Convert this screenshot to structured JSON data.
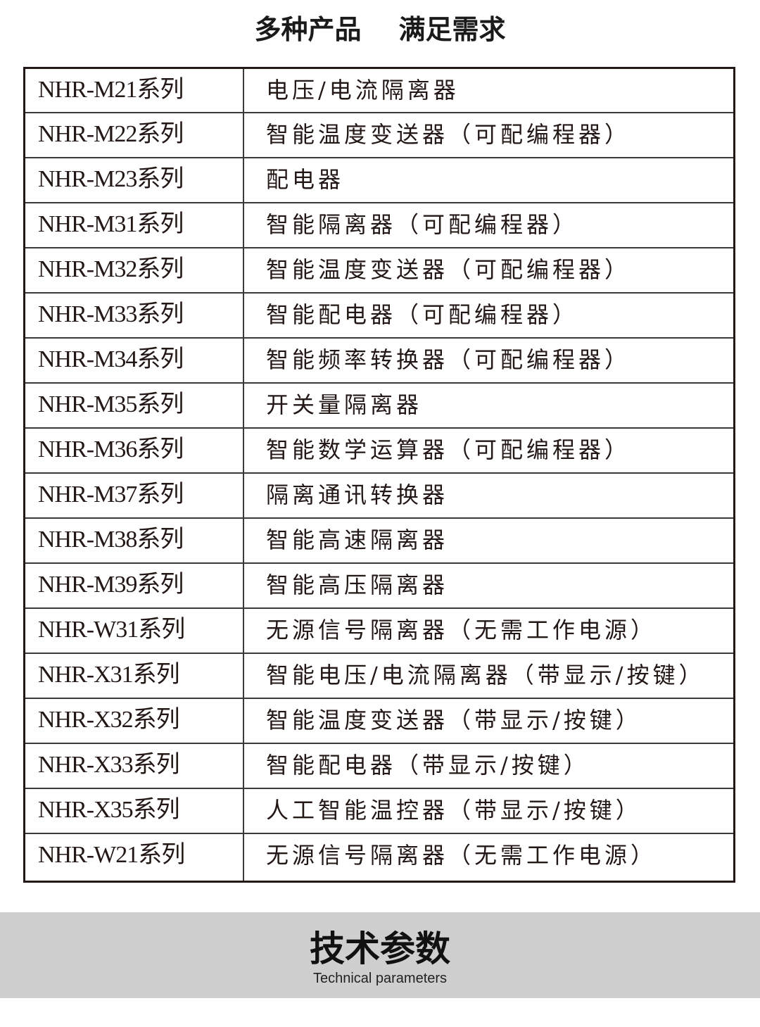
{
  "header": {
    "title": "多种产品    满足需求"
  },
  "products": [
    {
      "series": "NHR-M21系列",
      "description": "电压/电流隔离器"
    },
    {
      "series": "NHR-M22系列",
      "description": "智能温度变送器（可配编程器）"
    },
    {
      "series": "NHR-M23系列",
      "description": "配电器"
    },
    {
      "series": "NHR-M31系列",
      "description": "智能隔离器（可配编程器）"
    },
    {
      "series": "NHR-M32系列",
      "description": "智能温度变送器（可配编程器）"
    },
    {
      "series": "NHR-M33系列",
      "description": "智能配电器（可配编程器）"
    },
    {
      "series": "NHR-M34系列",
      "description": "智能频率转换器（可配编程器）"
    },
    {
      "series": "NHR-M35系列",
      "description": "开关量隔离器"
    },
    {
      "series": "NHR-M36系列",
      "description": "智能数学运算器（可配编程器）"
    },
    {
      "series": "NHR-M37系列",
      "description": "隔离通讯转换器"
    },
    {
      "series": "NHR-M38系列",
      "description": "智能高速隔离器"
    },
    {
      "series": "NHR-M39系列",
      "description": "智能高压隔离器"
    },
    {
      "series": "NHR-W31系列",
      "description": "无源信号隔离器（无需工作电源）"
    },
    {
      "series": "NHR-X31系列",
      "description": "智能电压/电流隔离器（带显示/按键）"
    },
    {
      "series": "NHR-X32系列",
      "description": "智能温度变送器（带显示/按键）"
    },
    {
      "series": "NHR-X33系列",
      "description": "智能配电器（带显示/按键）"
    },
    {
      "series": "NHR-X35系列",
      "description": "人工智能温控器（带显示/按键）"
    },
    {
      "series": "NHR-W21系列",
      "description": "无源信号隔离器（无需工作电源）"
    }
  ],
  "section": {
    "title": "技术参数",
    "subtitle": "Technical parameters"
  }
}
